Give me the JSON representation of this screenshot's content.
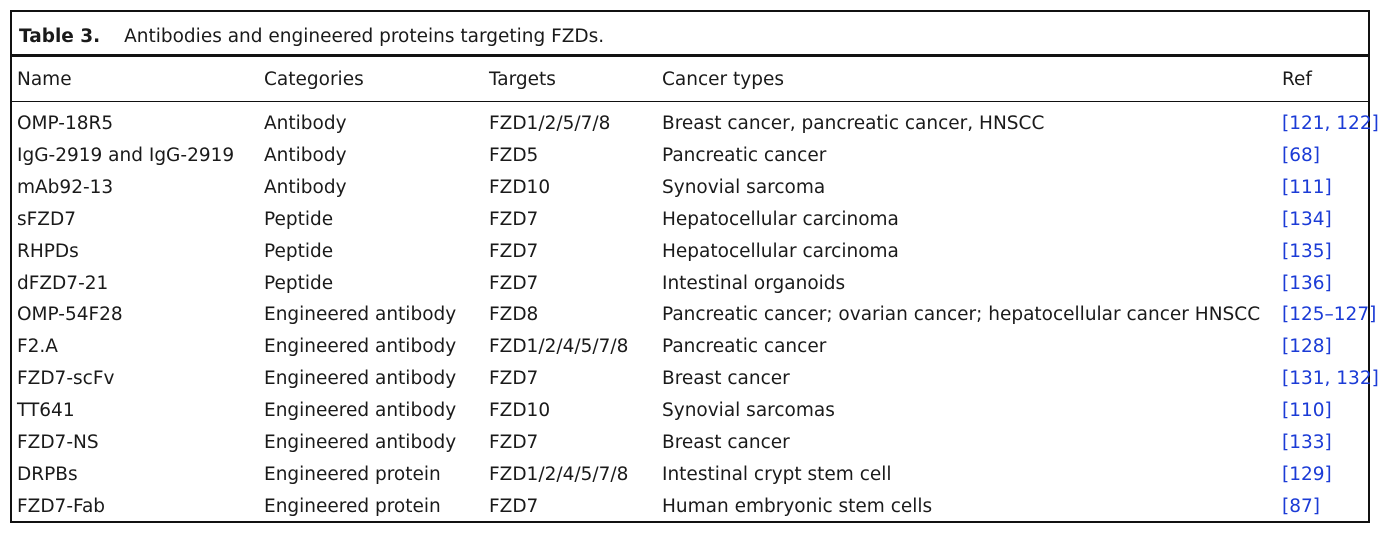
{
  "table": {
    "label": "Table 3.",
    "title": "Antibodies and engineered proteins targeting FZDs.",
    "headers": {
      "name": "Name",
      "categories": "Categories",
      "targets": "Targets",
      "cancer_types": "Cancer types",
      "ref": "Ref"
    },
    "rows": [
      {
        "name": "OMP-18R5",
        "category": "Antibody",
        "targets": "FZD1/2/5/7/8",
        "cancer": "Breast cancer, pancreatic cancer, HNSCC",
        "ref": "[121, 122]"
      },
      {
        "name": "IgG-2919 and IgG-2919",
        "category": "Antibody",
        "targets": "FZD5",
        "cancer": "Pancreatic cancer",
        "ref": "[68]"
      },
      {
        "name": "mAb92-13",
        "category": "Antibody",
        "targets": "FZD10",
        "cancer": "Synovial sarcoma",
        "ref": "[111]"
      },
      {
        "name": "sFZD7",
        "category": "Peptide",
        "targets": "FZD7",
        "cancer": "Hepatocellular carcinoma",
        "ref": "[134]"
      },
      {
        "name": "RHPDs",
        "category": "Peptide",
        "targets": "FZD7",
        "cancer": "Hepatocellular carcinoma",
        "ref": "[135]"
      },
      {
        "name": "dFZD7-21",
        "category": "Peptide",
        "targets": "FZD7",
        "cancer": "Intestinal organoids",
        "ref": "[136]"
      },
      {
        "name": "OMP-54F28",
        "category": "Engineered antibody",
        "targets": "FZD8",
        "cancer": "Pancreatic cancer; ovarian cancer; hepatocellular cancer HNSCC",
        "ref": "[125–127]"
      },
      {
        "name": "F2.A",
        "category": "Engineered antibody",
        "targets": "FZD1/2/4/5/7/8",
        "cancer": "Pancreatic cancer",
        "ref": "[128]"
      },
      {
        "name": "FZD7-scFv",
        "category": "Engineered antibody",
        "targets": "FZD7",
        "cancer": "Breast cancer",
        "ref": "[131, 132]"
      },
      {
        "name": "TT641",
        "category": "Engineered antibody",
        "targets": "FZD10",
        "cancer": "Synovial sarcomas",
        "ref": "[110]"
      },
      {
        "name": "FZD7-NS",
        "category": "Engineered antibody",
        "targets": "FZD7",
        "cancer": "Breast cancer",
        "ref": "[133]"
      },
      {
        "name": "DRPBs",
        "category": "Engineered protein",
        "targets": "FZD1/2/4/5/7/8",
        "cancer": "Intestinal crypt stem cell",
        "ref": "[129]"
      },
      {
        "name": "FZD7-Fab",
        "category": "Engineered protein",
        "targets": "FZD7",
        "cancer": "Human embryonic stem cells",
        "ref": "[87]"
      }
    ],
    "colors": {
      "ref_link": "#1b3bd6",
      "rule": "#111111"
    }
  }
}
